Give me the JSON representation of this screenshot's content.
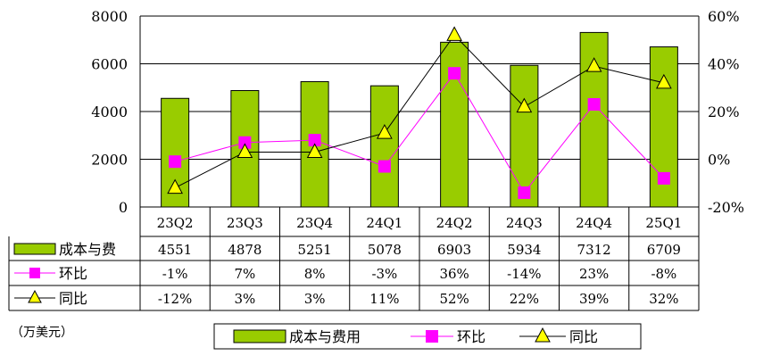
{
  "chart_data": {
    "type": "bar",
    "categories": [
      "23Q2",
      "23Q3",
      "23Q4",
      "24Q1",
      "24Q2",
      "24Q3",
      "24Q4",
      "25Q1"
    ],
    "series": [
      {
        "name": "成本与费用",
        "kind": "bar",
        "axis": "left",
        "values": [
          4551,
          4878,
          5251,
          5078,
          6903,
          5934,
          7312,
          6709
        ],
        "color": "#99CC00"
      },
      {
        "name": "环比",
        "kind": "line",
        "axis": "right",
        "marker": "square",
        "values": [
          -1,
          7,
          8,
          -3,
          36,
          -14,
          23,
          -8
        ],
        "color": "#FF00FF"
      },
      {
        "name": "同比",
        "kind": "line",
        "axis": "right",
        "marker": "triangle",
        "values": [
          -12,
          3,
          3,
          11,
          52,
          22,
          39,
          32
        ],
        "color": "#000000",
        "marker_color": "#FFFF00"
      }
    ],
    "y_left": {
      "min": 0,
      "max": 8000,
      "ticks": [
        "0",
        "2000",
        "4000",
        "6000",
        "8000"
      ]
    },
    "y_right": {
      "min": -20,
      "max": 60,
      "ticks": [
        "-20%",
        "0%",
        "20%",
        "40%",
        "60%"
      ]
    },
    "table": {
      "row_labels": [
        "成本与费",
        "环比",
        "同比"
      ],
      "rows": [
        [
          "4551",
          "4878",
          "5251",
          "5078",
          "6903",
          "5934",
          "7312",
          "6709"
        ],
        [
          "-1%",
          "7%",
          "8%",
          "-3%",
          "36%",
          "-14%",
          "23%",
          "-8%"
        ],
        [
          "-12%",
          "3%",
          "3%",
          "11%",
          "52%",
          "22%",
          "39%",
          "32%"
        ]
      ]
    },
    "unit_label": "（万美元）",
    "legend": {
      "placement": "bottom",
      "items": [
        "成本与费用",
        "环比",
        "同比"
      ]
    },
    "grid": true
  }
}
